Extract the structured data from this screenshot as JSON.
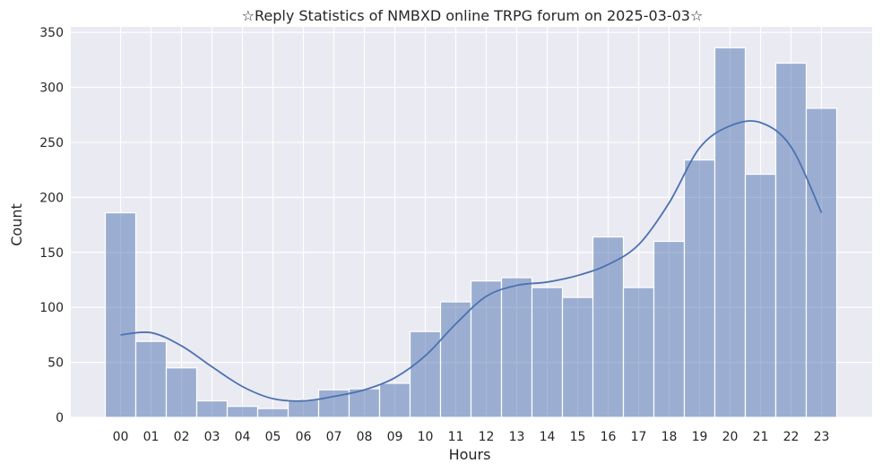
{
  "chart_data": {
    "type": "bar",
    "title": "☆Reply Statistics of NMBXD online TRPG forum on 2025-03-03☆",
    "xlabel": "Hours",
    "ylabel": "Count",
    "categories": [
      "00",
      "01",
      "02",
      "03",
      "04",
      "05",
      "06",
      "07",
      "08",
      "09",
      "10",
      "11",
      "12",
      "13",
      "14",
      "15",
      "16",
      "17",
      "18",
      "19",
      "20",
      "21",
      "22",
      "23"
    ],
    "values": [
      186,
      69,
      45,
      15,
      10,
      8,
      16,
      25,
      26,
      31,
      78,
      105,
      124,
      127,
      118,
      109,
      164,
      118,
      160,
      234,
      336,
      221,
      322,
      281
    ],
    "kde": [
      75,
      77,
      65,
      46,
      28,
      17,
      15,
      19,
      25,
      36,
      56,
      85,
      110,
      120,
      123,
      129,
      139,
      157,
      195,
      245,
      265,
      268,
      246,
      186
    ],
    "ylim": [
      0,
      355
    ],
    "yticks": [
      0,
      50,
      100,
      150,
      200,
      250,
      300,
      350
    ],
    "grid": true,
    "colors": {
      "background": "#eaeaf2",
      "bar_fill": "#4c72b0",
      "bar_opacity": 0.5,
      "line": "#4c72b0",
      "grid": "#ffffff"
    }
  }
}
